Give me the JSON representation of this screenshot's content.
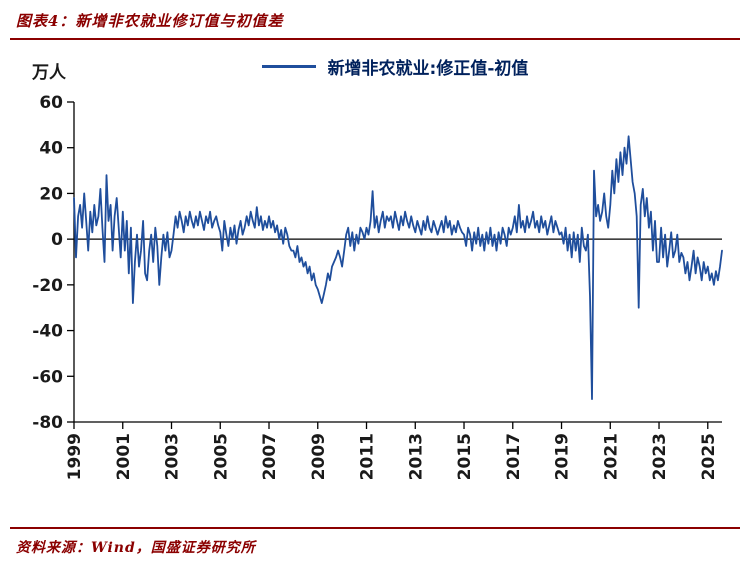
{
  "header": {
    "title": "图表4：新增非农就业修订值与初值差"
  },
  "footer": {
    "source": "资料来源：Wind，国盛证券研究所"
  },
  "chart": {
    "unit_label": "万人",
    "legend": "新增非农就业:修正值-初值",
    "line_color": "#1F4E9C",
    "accent_color": "#8B0000",
    "axis_color": "#000000"
  },
  "chart_data": {
    "type": "line",
    "title": "新增非农就业修订值与初值差",
    "ylabel": "万人",
    "legend": [
      "新增非农就业:修正值-初值"
    ],
    "frequency": "monthly",
    "x_start": "1999-01",
    "x_end": "2025-08",
    "ylim": [
      -80,
      60
    ],
    "ytick_step": 20,
    "grid": false,
    "legend_position": "top",
    "xticks": [
      "1999",
      "2001",
      "2003",
      "2005",
      "2007",
      "2009",
      "2011",
      "2013",
      "2015",
      "2017",
      "2019",
      "2021",
      "2023",
      "2025"
    ],
    "values": [
      18,
      -8,
      10,
      15,
      5,
      20,
      8,
      -5,
      12,
      3,
      15,
      6,
      10,
      22,
      5,
      -10,
      28,
      8,
      15,
      -5,
      10,
      18,
      5,
      -8,
      12,
      -5,
      8,
      -15,
      5,
      -28,
      -10,
      2,
      -12,
      -5,
      8,
      -15,
      -18,
      -5,
      2,
      -10,
      5,
      -3,
      -20,
      -8,
      2,
      -5,
      3,
      -8,
      -5,
      2,
      10,
      5,
      12,
      8,
      3,
      10,
      6,
      12,
      8,
      5,
      10,
      6,
      12,
      8,
      4,
      10,
      7,
      12,
      5,
      8,
      10,
      6,
      3,
      -5,
      8,
      2,
      -3,
      5,
      0,
      6,
      -2,
      4,
      8,
      2,
      5,
      10,
      6,
      12,
      8,
      5,
      14,
      6,
      10,
      4,
      8,
      5,
      10,
      5,
      8,
      3,
      6,
      0,
      4,
      -2,
      5,
      2,
      -3,
      -5,
      -5,
      -8,
      -3,
      -10,
      -8,
      -12,
      -10,
      -15,
      -12,
      -18,
      -15,
      -20,
      -22,
      -25,
      -28,
      -24,
      -20,
      -15,
      -18,
      -12,
      -10,
      -8,
      -5,
      -8,
      -12,
      -5,
      2,
      5,
      -3,
      3,
      -5,
      2,
      -2,
      5,
      3,
      0,
      5,
      2,
      8,
      21,
      5,
      10,
      3,
      8,
      12,
      5,
      10,
      8,
      10,
      5,
      12,
      8,
      4,
      10,
      6,
      12,
      8,
      5,
      10,
      6,
      3,
      8,
      5,
      2,
      8,
      4,
      10,
      5,
      3,
      8,
      5,
      2,
      5,
      8,
      3,
      10,
      5,
      8,
      2,
      6,
      3,
      8,
      5,
      3,
      2,
      -3,
      5,
      2,
      -5,
      3,
      -2,
      5,
      -3,
      2,
      -5,
      3,
      -2,
      5,
      -3,
      2,
      -5,
      3,
      -2,
      5,
      2,
      -3,
      5,
      2,
      5,
      10,
      3,
      15,
      5,
      8,
      3,
      10,
      5,
      8,
      12,
      5,
      8,
      3,
      10,
      5,
      8,
      2,
      6,
      10,
      3,
      8,
      5,
      2,
      3,
      -2,
      5,
      -5,
      2,
      -8,
      3,
      -5,
      2,
      -10,
      5,
      -3,
      -5,
      2,
      -25,
      -70,
      30,
      10,
      15,
      8,
      12,
      20,
      10,
      5,
      15,
      30,
      20,
      35,
      25,
      38,
      28,
      40,
      33,
      45,
      35,
      25,
      20,
      10,
      -30,
      15,
      22,
      10,
      18,
      5,
      12,
      -5,
      8,
      -10,
      -10,
      5,
      -8,
      2,
      -12,
      -5,
      3,
      -8,
      -5,
      2,
      -10,
      -6,
      -8,
      -15,
      -10,
      -18,
      -12,
      -5,
      -15,
      -8,
      -12,
      -18,
      -10,
      -15,
      -12,
      -18,
      -15,
      -20,
      -14,
      -18,
      -12,
      -5
    ]
  }
}
